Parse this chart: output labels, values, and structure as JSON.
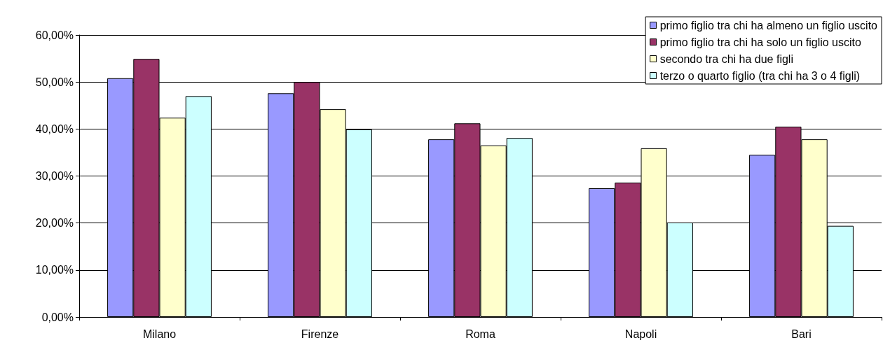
{
  "chart_data": {
    "type": "bar",
    "categories": [
      "Milano",
      "Firenze",
      "Roma",
      "Napoli",
      "Bari"
    ],
    "series": [
      {
        "name": "primo figlio tra chi ha almeno un figlio uscito",
        "color": "#9999ff",
        "values": [
          50.8,
          47.6,
          37.8,
          27.4,
          34.5
        ]
      },
      {
        "name": "primo figlio tra chi ha solo un figlio uscito",
        "color": "#993366",
        "values": [
          54.9,
          50.0,
          41.2,
          28.6,
          40.5
        ]
      },
      {
        "name": "secondo tra chi ha due figli",
        "color": "#ffffcc",
        "values": [
          42.4,
          44.2,
          36.5,
          35.9,
          37.8
        ]
      },
      {
        "name": "terzo o quarto figlio (tra chi ha 3 o 4 figli)",
        "color": "#ccffff",
        "values": [
          47.0,
          39.9,
          38.1,
          20.1,
          19.4
        ]
      }
    ],
    "ylim": [
      0,
      60
    ],
    "yticks": [
      {
        "value": 0,
        "label": "0,00%"
      },
      {
        "value": 10,
        "label": "10,00%"
      },
      {
        "value": 20,
        "label": "20,00%"
      },
      {
        "value": 30,
        "label": "30,00%"
      },
      {
        "value": 40,
        "label": "40,00%"
      },
      {
        "value": 50,
        "label": "50,00%"
      },
      {
        "value": 60,
        "label": "60,00%"
      }
    ],
    "grid": "y",
    "legend": "top right"
  }
}
